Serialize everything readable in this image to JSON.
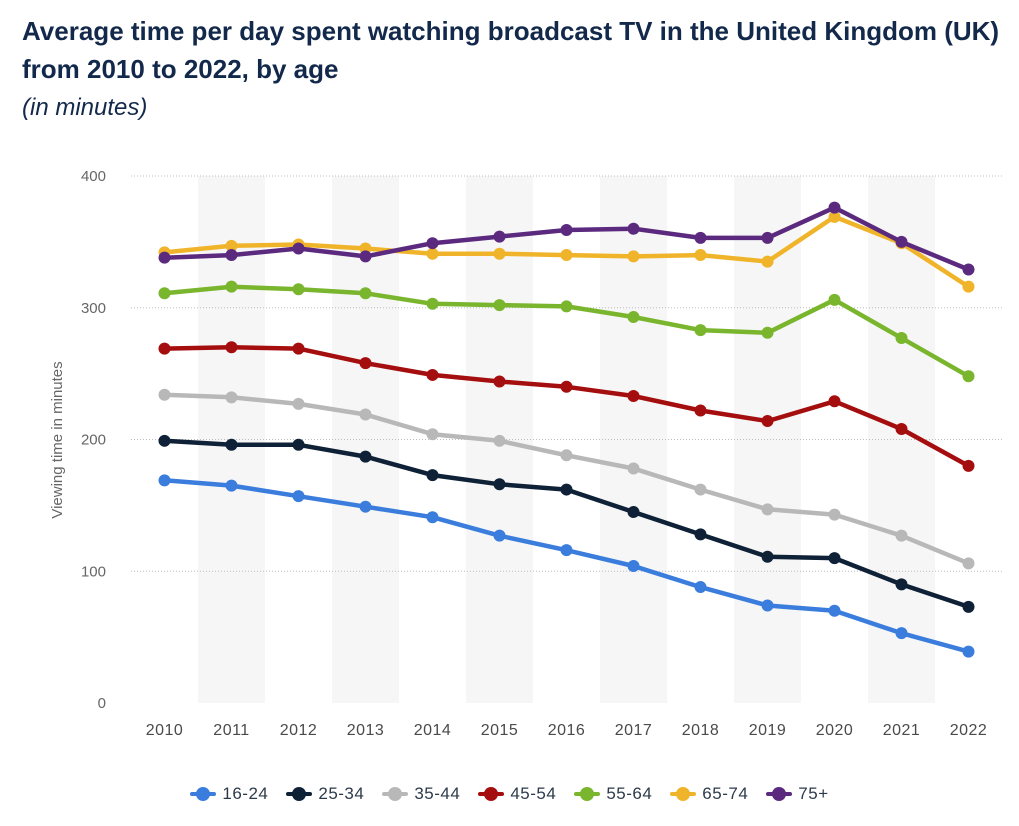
{
  "title": "Average time per day spent watching broadcast TV in the United Kingdom (UK) from 2010 to 2022, by age",
  "subtitle": "(in minutes)",
  "chart_data": {
    "type": "line",
    "title": "Average time per day spent watching broadcast TV in the United Kingdom (UK) from 2010 to 2022, by age",
    "subtitle": "(in minutes)",
    "xlabel": "",
    "ylabel": "Viewing time in minutes",
    "ylim": [
      0,
      400
    ],
    "yticks": [
      0,
      100,
      200,
      300,
      400
    ],
    "grid": true,
    "legend_position": "bottom",
    "categories": [
      "2010",
      "2011",
      "2012",
      "2013",
      "2014",
      "2015",
      "2016",
      "2017",
      "2018",
      "2019",
      "2020",
      "2021",
      "2022"
    ],
    "series": [
      {
        "name": "16-24",
        "color": "#3b7ddd",
        "values": [
          169,
          165,
          157,
          149,
          141,
          127,
          116,
          104,
          88,
          74,
          70,
          53,
          39
        ]
      },
      {
        "name": "25-34",
        "color": "#0e2136",
        "values": [
          199,
          196,
          196,
          187,
          173,
          166,
          162,
          145,
          128,
          111,
          110,
          90,
          73
        ]
      },
      {
        "name": "35-44",
        "color": "#b8b8b8",
        "values": [
          234,
          232,
          227,
          219,
          204,
          199,
          188,
          178,
          162,
          147,
          143,
          127,
          106
        ]
      },
      {
        "name": "45-54",
        "color": "#a50e0e",
        "values": [
          269,
          270,
          269,
          258,
          249,
          244,
          240,
          233,
          222,
          214,
          229,
          208,
          180
        ]
      },
      {
        "name": "55-64",
        "color": "#7ab52e",
        "values": [
          311,
          316,
          314,
          311,
          303,
          302,
          301,
          293,
          283,
          281,
          306,
          277,
          248
        ]
      },
      {
        "name": "65-74",
        "color": "#f0b42a",
        "values": [
          342,
          347,
          348,
          345,
          341,
          341,
          340,
          339,
          340,
          335,
          369,
          349,
          316
        ]
      },
      {
        "name": "75+",
        "color": "#5b2a7e",
        "values": [
          338,
          340,
          345,
          339,
          349,
          354,
          359,
          360,
          353,
          353,
          376,
          350,
          329
        ]
      }
    ]
  }
}
